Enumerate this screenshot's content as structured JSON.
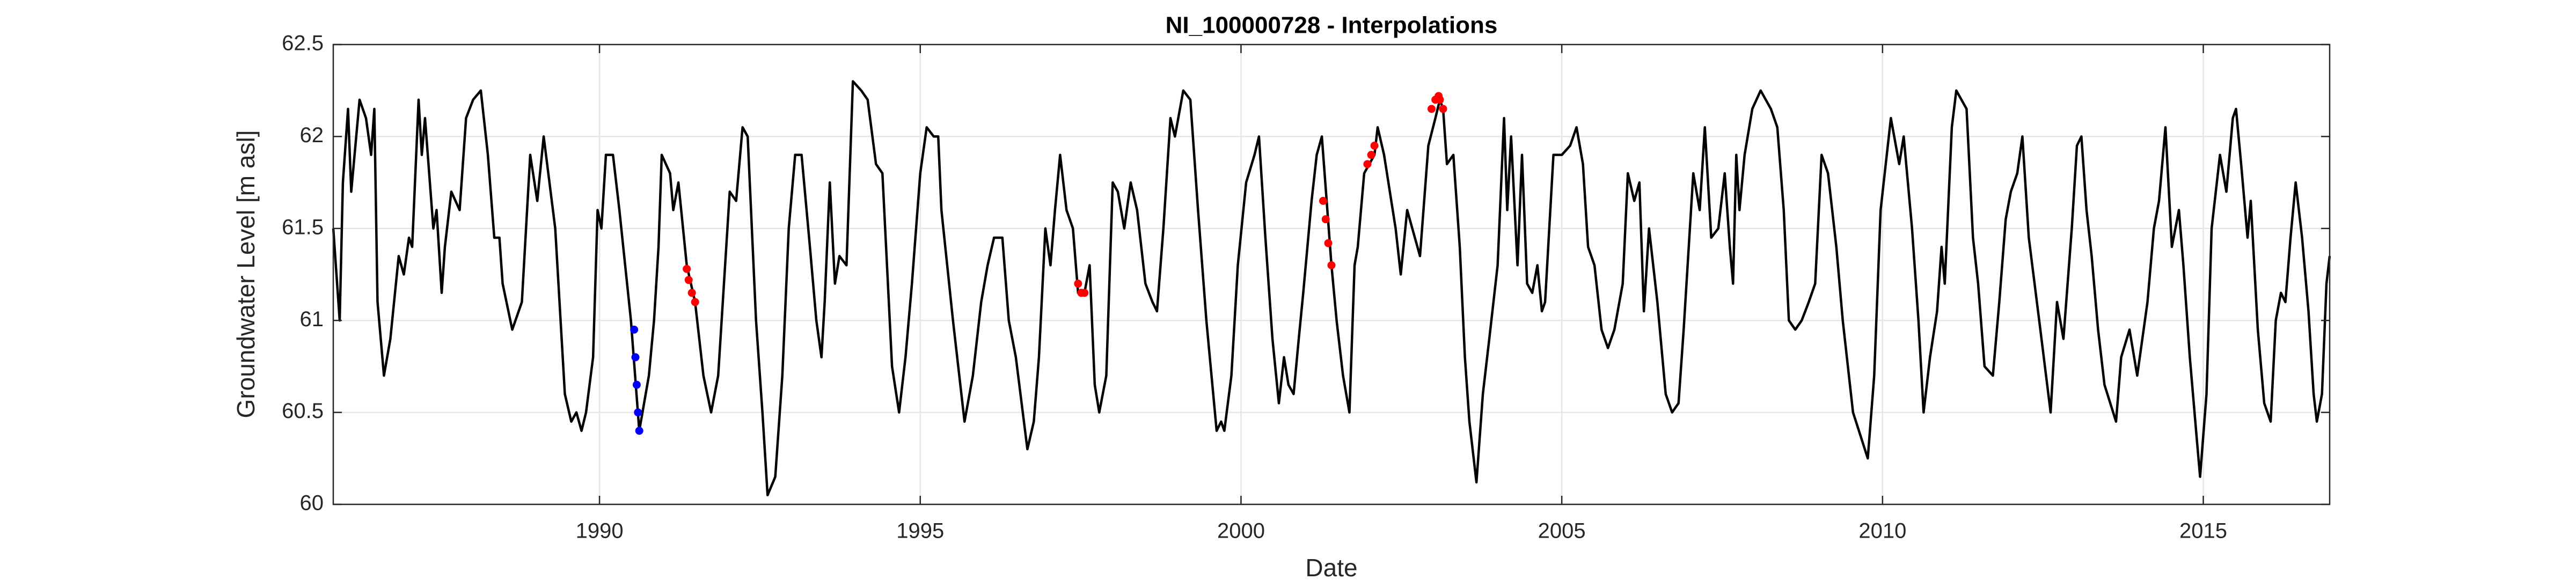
{
  "chart_data": {
    "type": "line",
    "title": "NI_100000728 - Interpolations",
    "x_label": "Date",
    "y_label": "Groundwater Level [m asl]",
    "xlim": [
      1985.85,
      2016.97
    ],
    "xticks": [
      1990,
      1995,
      2000,
      2005,
      2010,
      2015
    ],
    "ylim": [
      60,
      62.5
    ],
    "yticks": [
      60,
      60.5,
      61,
      61.5,
      62,
      62.5
    ],
    "grid": true,
    "series": [
      {
        "style": "line",
        "color": "#000000",
        "x": [
          1985.85,
          1985.95,
          1986.0,
          1986.08,
          1986.13,
          1986.26,
          1986.36,
          1986.44,
          1986.49,
          1986.54,
          1986.64,
          1986.74,
          1986.87,
          1986.95,
          1987.03,
          1987.08,
          1987.18,
          1987.23,
          1987.28,
          1987.41,
          1987.46,
          1987.54,
          1987.59,
          1987.69,
          1987.82,
          1987.92,
          1988.03,
          1988.15,
          1988.26,
          1988.36,
          1988.44,
          1988.49,
          1988.64,
          1988.79,
          1988.92,
          1989.03,
          1989.13,
          1989.31,
          1989.46,
          1989.56,
          1989.64,
          1989.72,
          1989.79,
          1989.9,
          1989.97,
          1990.03,
          1990.1,
          1990.21,
          1990.31,
          1990.49,
          1990.62,
          1990.67,
          1990.77,
          1990.85,
          1990.92,
          1990.97,
          1991.1,
          1991.15,
          1991.23,
          1991.36,
          1991.49,
          1991.62,
          1991.74,
          1991.85,
          1992.03,
          1992.13,
          1992.23,
          1992.31,
          1992.44,
          1992.54,
          1992.62,
          1992.74,
          1992.85,
          1992.95,
          1993.05,
          1993.15,
          1993.28,
          1993.38,
          1993.46,
          1993.51,
          1993.59,
          1993.67,
          1993.74,
          1993.85,
          1993.95,
          1994.08,
          1994.18,
          1994.31,
          1994.41,
          1994.56,
          1994.67,
          1994.77,
          1994.87,
          1995.0,
          1995.1,
          1995.21,
          1995.28,
          1995.33,
          1995.51,
          1995.69,
          1995.82,
          1995.95,
          1996.05,
          1996.15,
          1996.28,
          1996.38,
          1996.49,
          1996.67,
          1996.77,
          1996.85,
          1996.95,
          1997.03,
          1997.1,
          1997.18,
          1997.28,
          1997.38,
          1997.46,
          1997.56,
          1997.64,
          1997.72,
          1997.79,
          1997.9,
          1998.0,
          1998.08,
          1998.18,
          1998.28,
          1998.38,
          1998.51,
          1998.62,
          1998.69,
          1998.79,
          1998.9,
          1998.97,
          1999.1,
          1999.21,
          1999.33,
          1999.46,
          1999.62,
          1999.69,
          1999.74,
          1999.85,
          1999.95,
          2000.08,
          2000.21,
          2000.28,
          2000.38,
          2000.49,
          2000.59,
          2000.67,
          2000.74,
          2000.82,
          2000.9,
          2000.97,
          2001.1,
          2001.18,
          2001.26,
          2001.41,
          2001.49,
          2001.59,
          2001.69,
          2001.77,
          2001.82,
          2001.92,
          2002.08,
          2002.13,
          2002.23,
          2002.41,
          2002.49,
          2002.59,
          2002.79,
          2002.92,
          2003.03,
          2003.1,
          2003.15,
          2003.21,
          2003.31,
          2003.41,
          2003.49,
          2003.56,
          2003.67,
          2003.77,
          2003.87,
          2004.0,
          2004.1,
          2004.15,
          2004.21,
          2004.31,
          2004.38,
          2004.46,
          2004.54,
          2004.62,
          2004.69,
          2004.74,
          2004.87,
          2005.0,
          2005.13,
          2005.23,
          2005.33,
          2005.41,
          2005.51,
          2005.62,
          2005.72,
          2005.82,
          2005.95,
          2006.03,
          2006.13,
          2006.21,
          2006.28,
          2006.36,
          2006.49,
          2006.62,
          2006.72,
          2006.82,
          2006.9,
          2007.05,
          2007.15,
          2007.23,
          2007.33,
          2007.44,
          2007.54,
          2007.62,
          2007.67,
          2007.72,
          2007.77,
          2007.85,
          2007.97,
          2008.1,
          2008.26,
          2008.36,
          2008.46,
          2008.54,
          2008.64,
          2008.74,
          2008.85,
          2008.95,
          2009.05,
          2009.15,
          2009.28,
          2009.38,
          2009.54,
          2009.77,
          2009.87,
          2009.97,
          2010.13,
          2010.26,
          2010.33,
          2010.46,
          2010.56,
          2010.64,
          2010.74,
          2010.85,
          2010.92,
          2010.97,
          2011.08,
          2011.15,
          2011.31,
          2011.41,
          2011.49,
          2011.59,
          2011.72,
          2011.82,
          2011.92,
          2012.0,
          2012.1,
          2012.18,
          2012.28,
          2012.46,
          2012.62,
          2012.72,
          2012.82,
          2012.95,
          2013.03,
          2013.1,
          2013.18,
          2013.26,
          2013.36,
          2013.46,
          2013.64,
          2013.72,
          2013.85,
          2013.97,
          2014.13,
          2014.23,
          2014.31,
          2014.41,
          2014.51,
          2014.62,
          2014.69,
          2014.79,
          2014.9,
          2014.95,
          2015.05,
          2015.13,
          2015.26,
          2015.36,
          2015.46,
          2015.51,
          2015.59,
          2015.69,
          2015.74,
          2015.85,
          2015.95,
          2016.05,
          2016.13,
          2016.21,
          2016.28,
          2016.36,
          2016.44,
          2016.54,
          2016.64,
          2016.72,
          2016.77,
          2016.85,
          2016.92,
          2016.97
        ],
        "values": [
          61.5,
          61.0,
          61.75,
          62.15,
          61.7,
          62.2,
          62.1,
          61.9,
          62.15,
          61.1,
          60.7,
          60.9,
          61.35,
          61.25,
          61.45,
          61.4,
          62.2,
          61.9,
          62.1,
          61.5,
          61.6,
          61.15,
          61.4,
          61.7,
          61.6,
          62.1,
          62.2,
          62.25,
          61.9,
          61.45,
          61.45,
          61.2,
          60.95,
          61.1,
          61.9,
          61.65,
          62.0,
          61.5,
          60.6,
          60.45,
          60.5,
          60.4,
          60.5,
          60.8,
          61.6,
          61.5,
          61.9,
          61.9,
          61.6,
          61.0,
          60.4,
          60.5,
          60.7,
          61.0,
          61.4,
          61.9,
          61.8,
          61.6,
          61.75,
          61.3,
          61.1,
          60.7,
          60.5,
          60.7,
          61.7,
          61.65,
          62.05,
          62.0,
          61.0,
          60.5,
          60.05,
          60.15,
          60.7,
          61.5,
          61.9,
          61.9,
          61.4,
          61.0,
          60.8,
          61.1,
          61.75,
          61.2,
          61.35,
          61.3,
          62.3,
          62.25,
          62.2,
          61.85,
          61.8,
          60.75,
          60.5,
          60.8,
          61.2,
          61.8,
          62.05,
          62.0,
          62.0,
          61.6,
          61.0,
          60.45,
          60.7,
          61.1,
          61.3,
          61.45,
          61.45,
          61.0,
          60.8,
          60.3,
          60.45,
          60.8,
          61.5,
          61.3,
          61.6,
          61.9,
          61.6,
          61.5,
          61.15,
          61.15,
          61.3,
          60.65,
          60.5,
          60.7,
          61.75,
          61.7,
          61.5,
          61.75,
          61.6,
          61.2,
          61.1,
          61.05,
          61.5,
          62.1,
          62.0,
          62.25,
          62.2,
          61.6,
          61.0,
          60.4,
          60.45,
          60.4,
          60.7,
          61.3,
          61.75,
          61.9,
          62.0,
          61.45,
          60.9,
          60.55,
          60.8,
          60.65,
          60.6,
          60.9,
          61.15,
          61.65,
          61.9,
          62.0,
          61.3,
          61.0,
          60.7,
          60.5,
          61.3,
          61.4,
          61.8,
          61.9,
          62.05,
          61.9,
          61.5,
          61.25,
          61.6,
          61.35,
          61.95,
          62.1,
          62.2,
          62.15,
          61.85,
          61.9,
          61.4,
          60.8,
          60.45,
          60.12,
          60.6,
          60.9,
          61.3,
          62.1,
          61.6,
          62.0,
          61.3,
          61.9,
          61.2,
          61.15,
          61.3,
          61.05,
          61.1,
          61.9,
          61.9,
          61.95,
          62.05,
          61.85,
          61.4,
          61.3,
          60.95,
          60.85,
          60.95,
          61.2,
          61.8,
          61.65,
          61.75,
          61.05,
          61.5,
          61.1,
          60.6,
          60.5,
          60.55,
          60.95,
          61.8,
          61.6,
          62.05,
          61.45,
          61.5,
          61.8,
          61.4,
          61.2,
          61.9,
          61.6,
          61.9,
          62.15,
          62.25,
          62.15,
          62.05,
          61.6,
          61.0,
          60.95,
          61.0,
          61.1,
          61.2,
          61.9,
          61.8,
          61.4,
          61.0,
          60.5,
          60.25,
          60.7,
          61.6,
          62.1,
          61.85,
          62.0,
          61.5,
          61.0,
          60.5,
          60.8,
          61.05,
          61.4,
          61.2,
          62.05,
          62.25,
          62.15,
          61.45,
          61.2,
          60.75,
          60.7,
          61.1,
          61.55,
          61.7,
          61.8,
          62.0,
          61.45,
          60.95,
          60.5,
          61.1,
          60.9,
          61.5,
          61.95,
          62.0,
          61.6,
          61.35,
          60.95,
          60.65,
          60.45,
          60.8,
          60.95,
          60.7,
          61.1,
          61.5,
          61.65,
          62.05,
          61.4,
          61.6,
          61.3,
          60.8,
          60.35,
          60.15,
          60.6,
          61.5,
          61.9,
          61.7,
          62.1,
          62.15,
          61.85,
          61.45,
          61.65,
          60.95,
          60.55,
          60.45,
          61.0,
          61.15,
          61.1,
          61.45,
          61.75,
          61.45,
          61.05,
          60.6,
          60.45,
          60.6,
          61.2,
          61.35
        ]
      },
      {
        "style": "markers",
        "color": "#0000ff",
        "x": [
          1990.54,
          1990.56,
          1990.58,
          1990.6,
          1990.62
        ],
        "values": [
          60.95,
          60.8,
          60.65,
          60.5,
          60.4
        ]
      },
      {
        "style": "markers",
        "color": "#ff0000",
        "x": [
          1991.36,
          1991.39,
          1991.44,
          1991.49,
          1997.46,
          1997.51,
          1997.56,
          2001.28,
          2001.32,
          2001.36,
          2001.41,
          2001.97,
          2002.03,
          2002.08,
          2002.97,
          2003.03,
          2003.08,
          2003.1,
          2003.15
        ],
        "values": [
          61.28,
          61.22,
          61.15,
          61.1,
          61.2,
          61.15,
          61.15,
          61.65,
          61.55,
          61.42,
          61.3,
          61.85,
          61.9,
          61.95,
          62.15,
          62.2,
          62.22,
          62.2,
          62.15
        ]
      }
    ]
  }
}
